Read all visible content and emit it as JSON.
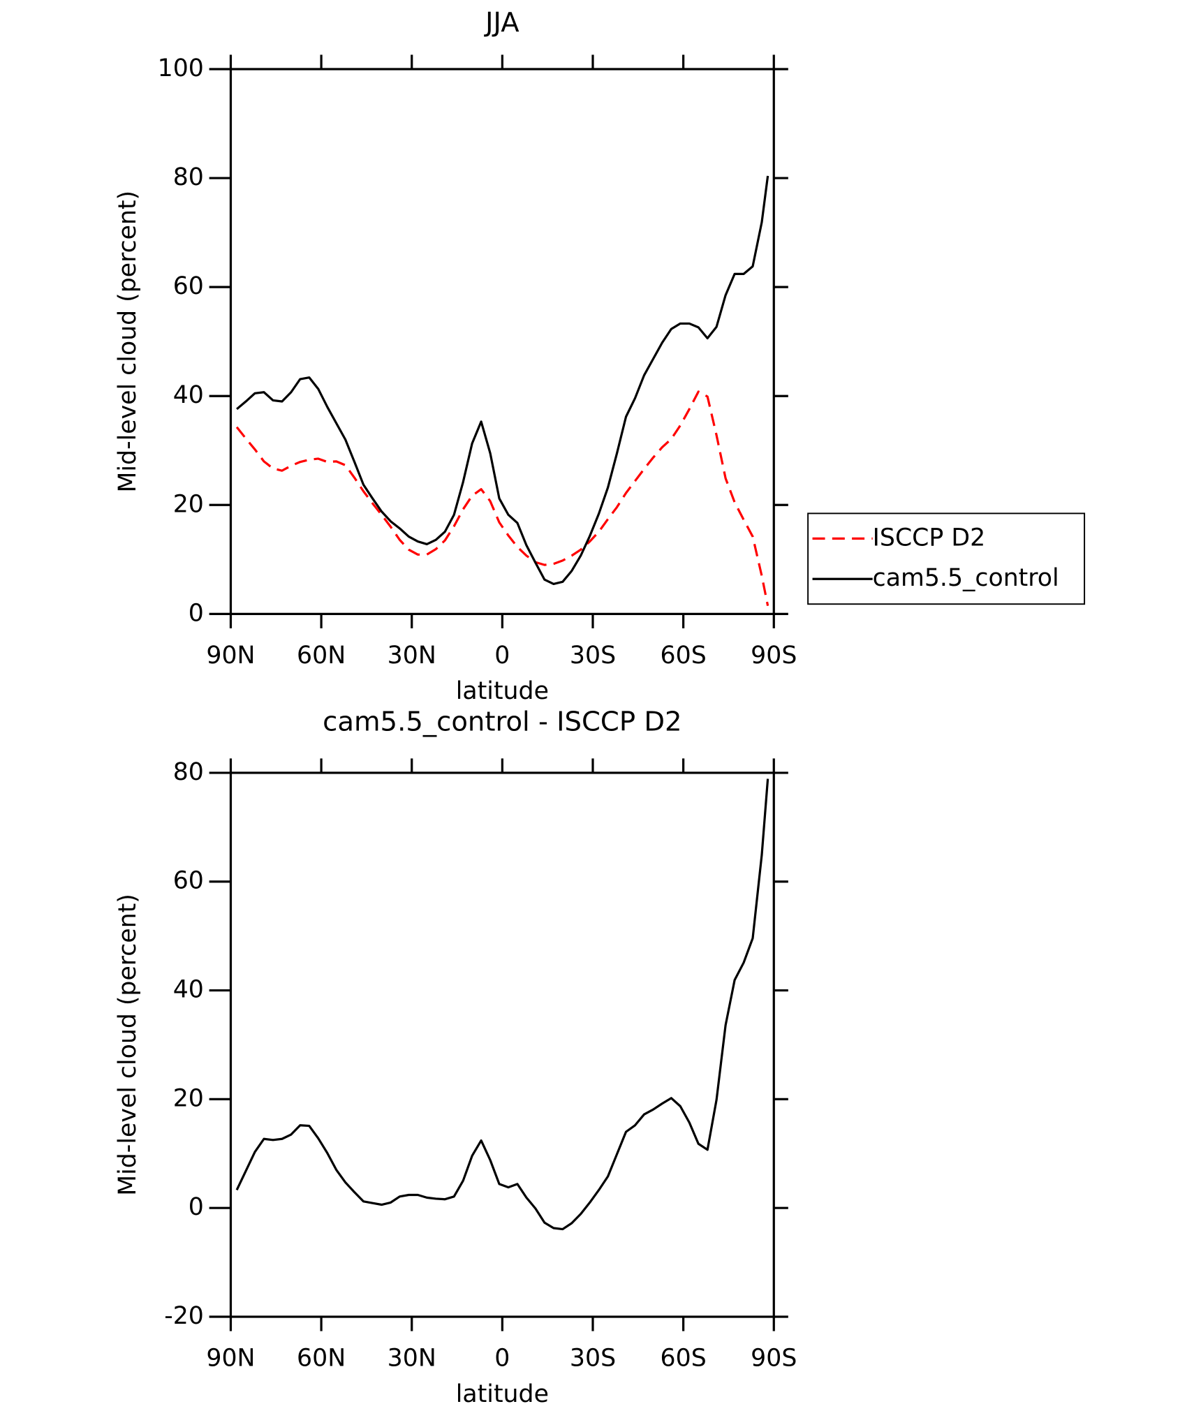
{
  "chart_data": [
    {
      "type": "line",
      "title": "JJA",
      "xlabel": "latitude",
      "ylabel": "Mid-level cloud (percent)",
      "x": [
        88,
        85,
        82,
        79,
        76,
        73,
        70,
        67,
        64,
        61,
        58,
        55,
        52,
        49,
        46,
        43,
        40,
        37,
        34,
        31,
        28,
        25,
        22,
        19,
        16,
        13,
        10,
        7,
        4,
        1,
        -2,
        -5,
        -8,
        -11,
        -14,
        -17,
        -20,
        -23,
        -26,
        -29,
        -32,
        -35,
        -38,
        -41,
        -44,
        -47,
        -50,
        -53,
        -56,
        -59,
        -62,
        -65,
        -68,
        -71,
        -74,
        -77,
        -80,
        -83,
        -86,
        -88
      ],
      "xlim": [
        90,
        -90
      ],
      "xticks": [
        {
          "value": 90,
          "label": "90N"
        },
        {
          "value": 60,
          "label": "60N"
        },
        {
          "value": 30,
          "label": "30N"
        },
        0,
        {
          "value": -30,
          "label": "30S"
        },
        {
          "value": -60,
          "label": "60S"
        },
        {
          "value": -90,
          "label": "90S"
        }
      ],
      "ylim": [
        0,
        100
      ],
      "yticks": [
        0,
        20,
        40,
        60,
        80,
        100
      ],
      "legend": "right",
      "series": [
        {
          "name": "ISCCP D2",
          "color": "#ff0000",
          "line_style": "dashed",
          "values": [
            34.3,
            32.2,
            30.2,
            28.0,
            26.7,
            26.3,
            27.2,
            27.9,
            28.3,
            28.5,
            27.9,
            28.0,
            27.3,
            25.0,
            22.5,
            20.3,
            18.2,
            16.0,
            13.6,
            11.8,
            10.9,
            10.9,
            11.9,
            13.5,
            16.1,
            19.2,
            21.7,
            22.9,
            20.7,
            16.8,
            14.4,
            12.3,
            10.7,
            9.5,
            9.0,
            9.2,
            9.8,
            10.7,
            11.8,
            13.3,
            15.1,
            17.4,
            19.6,
            22.2,
            24.4,
            26.6,
            28.7,
            30.6,
            32.1,
            34.6,
            37.6,
            40.8,
            39.9,
            32.8,
            24.9,
            20.5,
            17.3,
            14.2,
            7.0,
            1.5
          ]
        },
        {
          "name": "cam5.5_control",
          "color": "#000000",
          "line_style": "solid",
          "values": [
            37.6,
            39.0,
            40.5,
            40.7,
            39.2,
            39.0,
            40.7,
            43.1,
            43.4,
            41.3,
            38.0,
            35.0,
            32.0,
            27.9,
            23.7,
            21.2,
            18.8,
            17.0,
            15.7,
            14.2,
            13.3,
            12.8,
            13.6,
            15.1,
            18.2,
            24.2,
            31.3,
            35.3,
            29.5,
            21.2,
            18.2,
            16.7,
            12.6,
            9.4,
            6.3,
            5.5,
            5.9,
            7.9,
            10.7,
            14.3,
            18.4,
            23.2,
            29.5,
            36.2,
            39.6,
            43.8,
            46.8,
            49.8,
            52.3,
            53.3,
            53.3,
            52.6,
            50.6,
            52.7,
            58.5,
            62.4,
            62.4,
            63.8,
            71.9,
            80.4
          ]
        }
      ]
    },
    {
      "type": "line",
      "title": "cam5.5_control - ISCCP D2",
      "xlabel": "latitude",
      "ylabel": "Mid-level cloud (percent)",
      "x": [
        88,
        85,
        82,
        79,
        76,
        73,
        70,
        67,
        64,
        61,
        58,
        55,
        52,
        49,
        46,
        43,
        40,
        37,
        34,
        31,
        28,
        25,
        22,
        19,
        16,
        13,
        10,
        7,
        4,
        1,
        -2,
        -5,
        -8,
        -11,
        -14,
        -17,
        -20,
        -23,
        -26,
        -29,
        -32,
        -35,
        -38,
        -41,
        -44,
        -47,
        -50,
        -53,
        -56,
        -59,
        -62,
        -65,
        -68,
        -71,
        -74,
        -77,
        -80,
        -83,
        -86,
        -88
      ],
      "xlim": [
        90,
        -90
      ],
      "xticks": [
        {
          "value": 90,
          "label": "90N"
        },
        {
          "value": 60,
          "label": "60N"
        },
        {
          "value": 30,
          "label": "30N"
        },
        0,
        {
          "value": -30,
          "label": "30S"
        },
        {
          "value": -60,
          "label": "60S"
        },
        {
          "value": -90,
          "label": "90S"
        }
      ],
      "ylim": [
        -20,
        80
      ],
      "yticks": [
        -20,
        0,
        20,
        40,
        60,
        80
      ],
      "series": [
        {
          "color": "#000000",
          "line_style": "solid",
          "values": [
            3.3,
            6.8,
            10.3,
            12.7,
            12.5,
            12.7,
            13.5,
            15.2,
            15.1,
            12.8,
            10.1,
            7.0,
            4.7,
            2.9,
            1.2,
            0.9,
            0.6,
            1.0,
            2.1,
            2.4,
            2.4,
            1.9,
            1.7,
            1.6,
            2.1,
            5.0,
            9.6,
            12.4,
            8.8,
            4.4,
            3.8,
            4.4,
            1.9,
            -0.1,
            -2.7,
            -3.7,
            -3.9,
            -2.8,
            -1.1,
            1.0,
            3.3,
            5.8,
            9.9,
            14.0,
            15.2,
            17.2,
            18.1,
            19.2,
            20.2,
            18.7,
            15.7,
            11.8,
            10.7,
            19.9,
            33.6,
            41.9,
            45.1,
            49.6,
            64.9,
            78.9
          ]
        }
      ]
    }
  ]
}
